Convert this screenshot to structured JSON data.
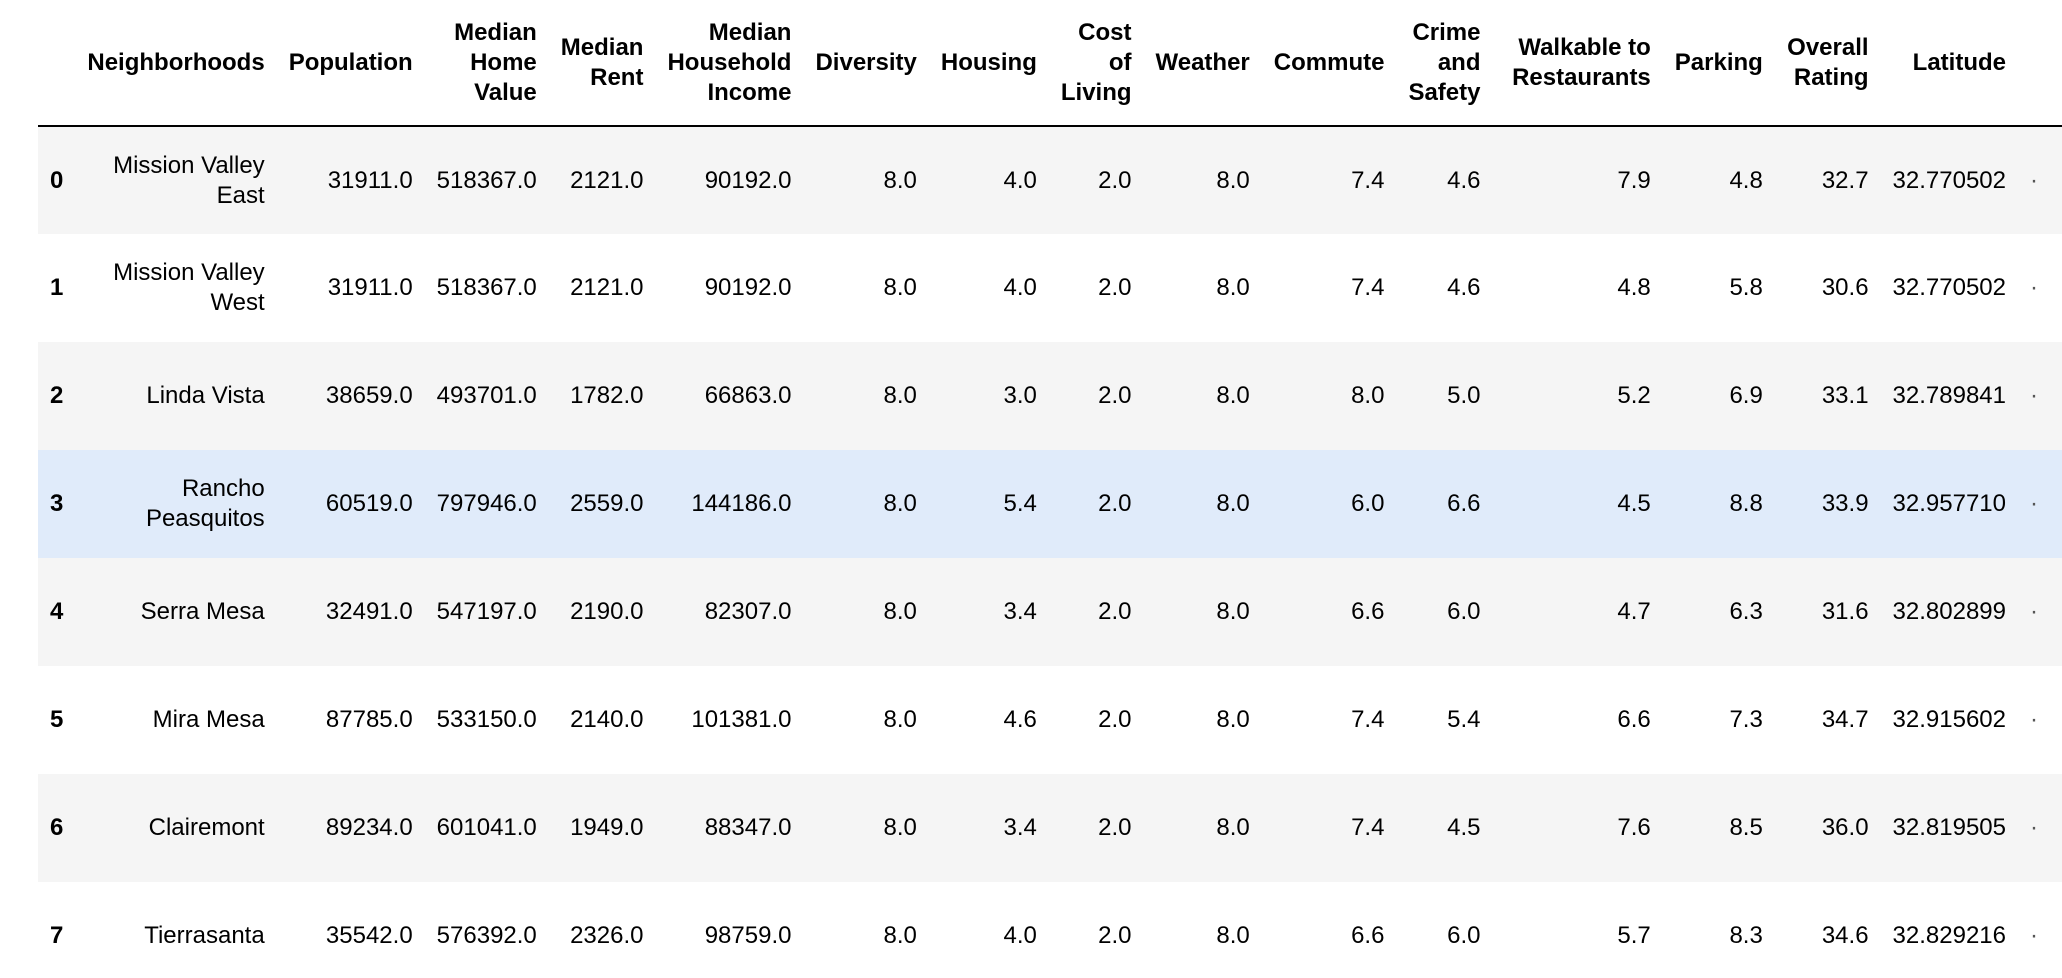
{
  "table": {
    "index_header": "",
    "columns": [
      "Neighborhoods",
      "Population",
      "Median Home Value",
      "Median Rent",
      "Median Household Income",
      "Diversity",
      "Housing",
      "Cost of Living",
      "Weather",
      "Commute",
      "Crime and Safety",
      "Walkable to Restaurants",
      "Parking",
      "Overall Rating",
      "Latitude"
    ],
    "rows": [
      {
        "index": "0",
        "cells": [
          "Mission Valley East",
          "31911.0",
          "518367.0",
          "2121.0",
          "90192.0",
          "8.0",
          "4.0",
          "2.0",
          "8.0",
          "7.4",
          "4.6",
          "7.9",
          "4.8",
          "32.7",
          "32.770502"
        ]
      },
      {
        "index": "1",
        "cells": [
          "Mission Valley West",
          "31911.0",
          "518367.0",
          "2121.0",
          "90192.0",
          "8.0",
          "4.0",
          "2.0",
          "8.0",
          "7.4",
          "4.6",
          "4.8",
          "5.8",
          "30.6",
          "32.770502"
        ]
      },
      {
        "index": "2",
        "cells": [
          "Linda Vista",
          "38659.0",
          "493701.0",
          "1782.0",
          "66863.0",
          "8.0",
          "3.0",
          "2.0",
          "8.0",
          "8.0",
          "5.0",
          "5.2",
          "6.9",
          "33.1",
          "32.789841"
        ]
      },
      {
        "index": "3",
        "cells": [
          "Rancho Peasquitos",
          "60519.0",
          "797946.0",
          "2559.0",
          "144186.0",
          "8.0",
          "5.4",
          "2.0",
          "8.0",
          "6.0",
          "6.6",
          "4.5",
          "8.8",
          "33.9",
          "32.957710"
        ]
      },
      {
        "index": "4",
        "cells": [
          "Serra Mesa",
          "32491.0",
          "547197.0",
          "2190.0",
          "82307.0",
          "8.0",
          "3.4",
          "2.0",
          "8.0",
          "6.6",
          "6.0",
          "4.7",
          "6.3",
          "31.6",
          "32.802899"
        ]
      },
      {
        "index": "5",
        "cells": [
          "Mira Mesa",
          "87785.0",
          "533150.0",
          "2140.0",
          "101381.0",
          "8.0",
          "4.6",
          "2.0",
          "8.0",
          "7.4",
          "5.4",
          "6.6",
          "7.3",
          "34.7",
          "32.915602"
        ]
      },
      {
        "index": "6",
        "cells": [
          "Clairemont",
          "89234.0",
          "601041.0",
          "1949.0",
          "88347.0",
          "8.0",
          "3.4",
          "2.0",
          "8.0",
          "7.4",
          "4.5",
          "7.6",
          "8.5",
          "36.0",
          "32.819505"
        ]
      },
      {
        "index": "7",
        "cells": [
          "Tierrasanta",
          "35542.0",
          "576392.0",
          "2326.0",
          "98759.0",
          "8.0",
          "4.0",
          "2.0",
          "8.0",
          "6.6",
          "6.0",
          "5.7",
          "8.3",
          "34.6",
          "32.829216"
        ]
      }
    ],
    "clipped_marker": "·",
    "highlighted_row": 3
  },
  "colors": {
    "header_rule": "#000000",
    "stripe": "#f5f5f5",
    "hover": "#e0ebfa",
    "background": "#ffffff"
  }
}
